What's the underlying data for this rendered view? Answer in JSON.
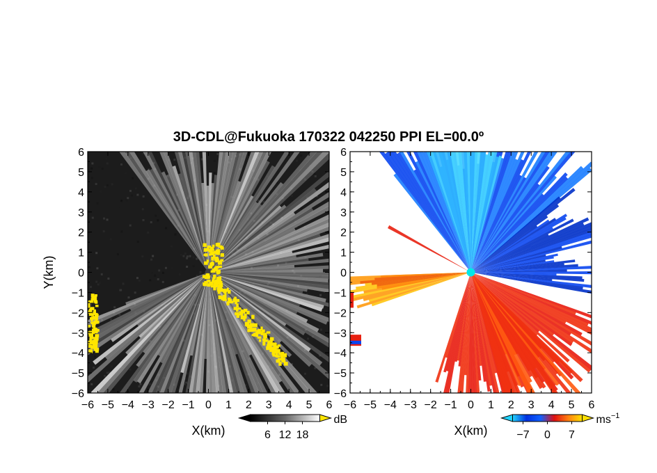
{
  "figure": {
    "title": "3D-CDL@Fukuoka 170322 042250 PPI EL=00.0º",
    "background": "#ffffff"
  },
  "chart_data": [
    {
      "type": "heatmap",
      "panel": "left",
      "quantity": "backscatter intensity (grayscale, >threshold shown yellow)",
      "xlabel": "X(km)",
      "ylabel": "Y(km)",
      "xlim": [
        -6,
        6
      ],
      "ylim": [
        -6,
        6
      ],
      "x_ticks": [
        -6,
        -5,
        -4,
        -3,
        -2,
        -1,
        0,
        1,
        2,
        3,
        4,
        5,
        6
      ],
      "y_ticks": [
        -6,
        -5,
        -4,
        -3,
        -2,
        -1,
        0,
        1,
        2,
        3,
        4,
        5,
        6
      ],
      "x_tick_labels": [
        "−6",
        "−5",
        "−4",
        "−3",
        "−2",
        "−1",
        "0",
        "1",
        "2",
        "3",
        "4",
        "5",
        "6"
      ],
      "y_tick_labels": [
        "−6",
        "−5",
        "−4",
        "−3",
        "−2",
        "−1",
        "0",
        "1",
        "2",
        "3",
        "4",
        "5",
        "6"
      ],
      "colorbar": {
        "unit": "dB",
        "ticks": [
          6,
          12,
          18
        ],
        "tick_labels": [
          "6",
          "12",
          "18"
        ],
        "low_color": "#000000",
        "high_color": "#ffffff",
        "over_color": "#ffe600"
      },
      "colors": {
        "background": "#1c1c1c",
        "high": "#ffffff",
        "strong_echo": "#ffe600",
        "radar_center": "#404040"
      },
      "echo_sector_deg": [
        -160,
        125
      ],
      "strong_echo_regions": [
        {
          "desc": "near radar, northwest",
          "x": [
            -0.3,
            0.6
          ],
          "y": [
            -0.6,
            1.5
          ]
        },
        {
          "desc": "band to southeast",
          "x": [
            0.2,
            3.7
          ],
          "y": [
            -4.3,
            -0.5
          ]
        },
        {
          "desc": "west edge",
          "x": [
            -6,
            -5.6
          ],
          "y": [
            -3.9,
            -1.0
          ]
        }
      ]
    },
    {
      "type": "heatmap",
      "panel": "right",
      "quantity": "radial Doppler velocity",
      "xlabel": "X(km)",
      "ylabel": "",
      "xlim": [
        -6,
        6
      ],
      "ylim": [
        -6,
        6
      ],
      "x_ticks": [
        -6,
        -5,
        -4,
        -3,
        -2,
        -1,
        0,
        1,
        2,
        3,
        4,
        5,
        6
      ],
      "y_ticks": [
        -6,
        -5,
        -4,
        -3,
        -2,
        -1,
        0,
        1,
        2,
        3,
        4,
        5,
        6
      ],
      "x_tick_labels": [
        "−6",
        "−5",
        "−4",
        "−3",
        "−2",
        "−1",
        "0",
        "1",
        "2",
        "3",
        "4",
        "5",
        "6"
      ],
      "y_tick_labels": [
        "−6",
        "−5",
        "−4",
        "−3",
        "−2",
        "−1",
        "0",
        "1",
        "2",
        "3",
        "4",
        "5",
        "6"
      ],
      "colorbar": {
        "unit": "ms",
        "unit_exponent": "−1",
        "ticks": [
          -7,
          0,
          7
        ],
        "tick_labels": [
          "−7",
          "0",
          "7"
        ],
        "colors": [
          "#22d4ff",
          "#0030e0",
          "#1060ff",
          "#e01010",
          "#ff8010",
          "#ffe000"
        ]
      },
      "colors": {
        "background": "#ffffff",
        "approaching": "#0a46f0",
        "receding": "#f03010",
        "radar_center": "#00e8e8"
      },
      "echo_sectors": [
        {
          "desc": "northwest to northeast, negative velocity (blue)",
          "deg": [
            -10,
            128
          ]
        },
        {
          "desc": "southeast, positive velocity (red)",
          "deg": [
            -108,
            -18
          ]
        },
        {
          "desc": "west-southwest, positive velocity (orange)",
          "deg": [
            -162,
            -178
          ]
        }
      ]
    }
  ]
}
